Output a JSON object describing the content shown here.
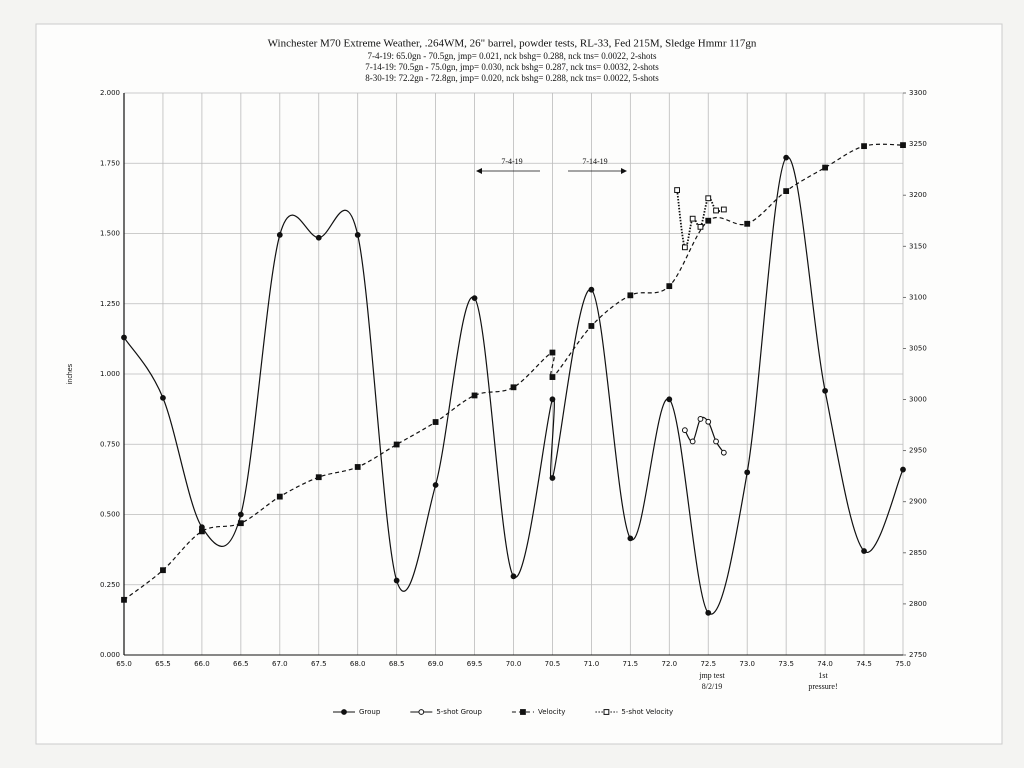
{
  "chart_data": {
    "type": "line",
    "title": "Winchester M70 Extreme Weather, .264WM, 26\" barrel, powder tests, RL-33, Fed 215M, Sledge Hmmr 117gn",
    "subtitle": [
      "7-4-19:  65.0gn - 70.5gn,  jmp= 0.021,  nck bshg= 0.288,  nck tns= 0.0022,  2-shots",
      "7-14-19:  70.5gn - 75.0gn,  jmp= 0.030,  nck bshg= 0.287,  nck tns= 0.0032,  2-shots",
      "8-30-19:  72.2gn - 72.8gn,  jmp= 0.020,  nck bshg= 0.288,  nck tns= 0.0022,  5-shots"
    ],
    "y_label": "inches",
    "xlim": [
      65,
      75
    ],
    "xticks": [
      {
        "value": 65,
        "label": "65.0"
      },
      65.5,
      {
        "value": 66,
        "label": "66.0"
      },
      66.5,
      {
        "value": 67,
        "label": "67.0"
      },
      67.5,
      {
        "value": 68,
        "label": "68.0"
      },
      68.5,
      {
        "value": 69,
        "label": "69.0"
      },
      69.5,
      {
        "value": 70,
        "label": "70.0"
      },
      70.5,
      {
        "value": 71,
        "label": "71.0"
      },
      71.5,
      {
        "value": 72,
        "label": "72.0"
      },
      72.5,
      {
        "value": 73,
        "label": "73.0"
      },
      73.5,
      {
        "value": 74,
        "label": "74.0"
      },
      74.5,
      {
        "value": 75,
        "label": "75.0"
      }
    ],
    "ylim": [
      0,
      2
    ],
    "yticks": [
      {
        "value": 0,
        "label": "0.000"
      },
      {
        "value": 0.25,
        "label": "0.250"
      },
      {
        "value": 0.5,
        "label": "0.500"
      },
      {
        "value": 0.75,
        "label": "0.750"
      },
      {
        "value": 1,
        "label": "1.000"
      },
      {
        "value": 1.25,
        "label": "1.250"
      },
      {
        "value": 1.5,
        "label": "1.500"
      },
      {
        "value": 1.75,
        "label": "1.750"
      },
      {
        "value": 2,
        "label": "2.000"
      }
    ],
    "y2lim": [
      2750,
      3300
    ],
    "y2ticks": [
      2750,
      2800,
      2850,
      2900,
      2950,
      3000,
      3050,
      3100,
      3150,
      3200,
      3250,
      3300
    ],
    "grid": true,
    "series": [
      {
        "name": "Group",
        "color": "#111111",
        "line_style": "solid",
        "marker": "circle-filled",
        "x": [
          65,
          65.5,
          66,
          66.5,
          67,
          67.5,
          68,
          68.5,
          69,
          69.5,
          70,
          70.5,
          70.5,
          71,
          71.5,
          72,
          72.5,
          73,
          73.5,
          74,
          74.5,
          75
        ],
        "values": [
          1.13,
          0.915,
          0.455,
          0.5,
          1.495,
          1.485,
          1.495,
          0.265,
          0.605,
          1.27,
          0.28,
          0.91,
          0.63,
          1.3,
          0.415,
          0.91,
          0.15,
          0.65,
          1.77,
          0.94,
          0.37,
          0.66
        ]
      },
      {
        "name": "5-shot Group",
        "color": "#111111",
        "line_style": "solid",
        "marker": "circle-open",
        "x": [
          72.2,
          72.3,
          72.4,
          72.5,
          72.6,
          72.7
        ],
        "values": [
          0.8,
          0.76,
          0.84,
          0.83,
          0.76,
          0.72
        ]
      },
      {
        "name": "Velocity",
        "color": "#111111",
        "line_style": "dashed",
        "marker": "square-filled",
        "axis": "y2",
        "x": [
          65,
          65.5,
          66,
          66.5,
          67,
          67.5,
          68,
          68.5,
          69,
          69.5,
          70,
          70.5,
          70.5,
          71,
          71.5,
          72,
          72.5,
          73,
          73.5,
          74,
          74.5,
          75
        ],
        "values": [
          2804,
          2833,
          2871,
          2879,
          2905,
          2924,
          2934,
          2956,
          2978,
          3004,
          3012,
          3046,
          3022,
          3072,
          3102,
          3111,
          3175,
          3172,
          3204,
          3227,
          3248,
          3249
        ]
      },
      {
        "name": "5-shot Velocity",
        "color": "#111111",
        "line_style": "dotted",
        "marker": "square-open",
        "axis": "y2",
        "x": [
          72.1,
          72.2,
          72.3,
          72.4,
          72.5,
          72.6,
          72.7
        ],
        "values": [
          3205,
          3149,
          3177,
          3169,
          3197,
          3185,
          3186
        ]
      }
    ],
    "annotations": [
      "7-4-19",
      "7-14-19",
      "jmp test\n8/2/19",
      "1st\npressure!"
    ]
  }
}
